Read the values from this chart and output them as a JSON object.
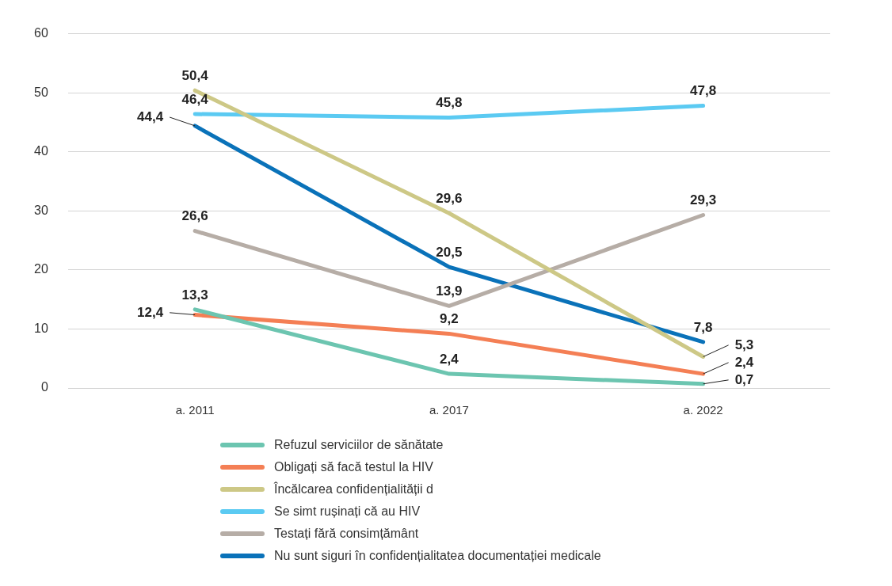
{
  "chart_data": {
    "type": "line",
    "categories": [
      "a. 2011",
      "a. 2017",
      "a. 2022"
    ],
    "ylim": [
      0,
      60
    ],
    "yticks": [
      0,
      10,
      20,
      30,
      40,
      50,
      60
    ],
    "grid": "y",
    "legend": "bottom",
    "marker": "none",
    "series": [
      {
        "name": "Refuzul serviciilor de sănătate",
        "color": "#6cc5b0",
        "values": [
          13.3,
          2.4,
          0.7
        ],
        "value_labels": [
          "13,3",
          "2,4",
          "0,7"
        ]
      },
      {
        "name": "Obligați să facă testul la HIV",
        "color": "#f47f55",
        "values": [
          12.4,
          9.2,
          2.4
        ],
        "value_labels": [
          "12,4",
          "9,2",
          "2,4"
        ]
      },
      {
        "name": "Încălcarea confidențialității d",
        "color": "#cdc886",
        "values": [
          50.4,
          29.6,
          5.3
        ],
        "value_labels": [
          "50,4",
          "29,6",
          "5,3"
        ]
      },
      {
        "name": "Se simt rușinați că au HIV",
        "color": "#5bcaf2",
        "values": [
          46.4,
          45.8,
          47.8
        ],
        "value_labels": [
          "46,4",
          "45,8",
          "47,8"
        ]
      },
      {
        "name": "Testați fără consimțământ",
        "color": "#b6ada6",
        "values": [
          26.6,
          13.9,
          29.3
        ],
        "value_labels": [
          "26,6",
          "13,9",
          "29,3"
        ]
      },
      {
        "name": "Nu sunt siguri în confidențialitatea documentației medicale",
        "color": "#0a72b9",
        "values": [
          44.4,
          20.5,
          7.8
        ],
        "value_labels": [
          "44,4",
          "20,5",
          "7,8"
        ]
      }
    ]
  }
}
